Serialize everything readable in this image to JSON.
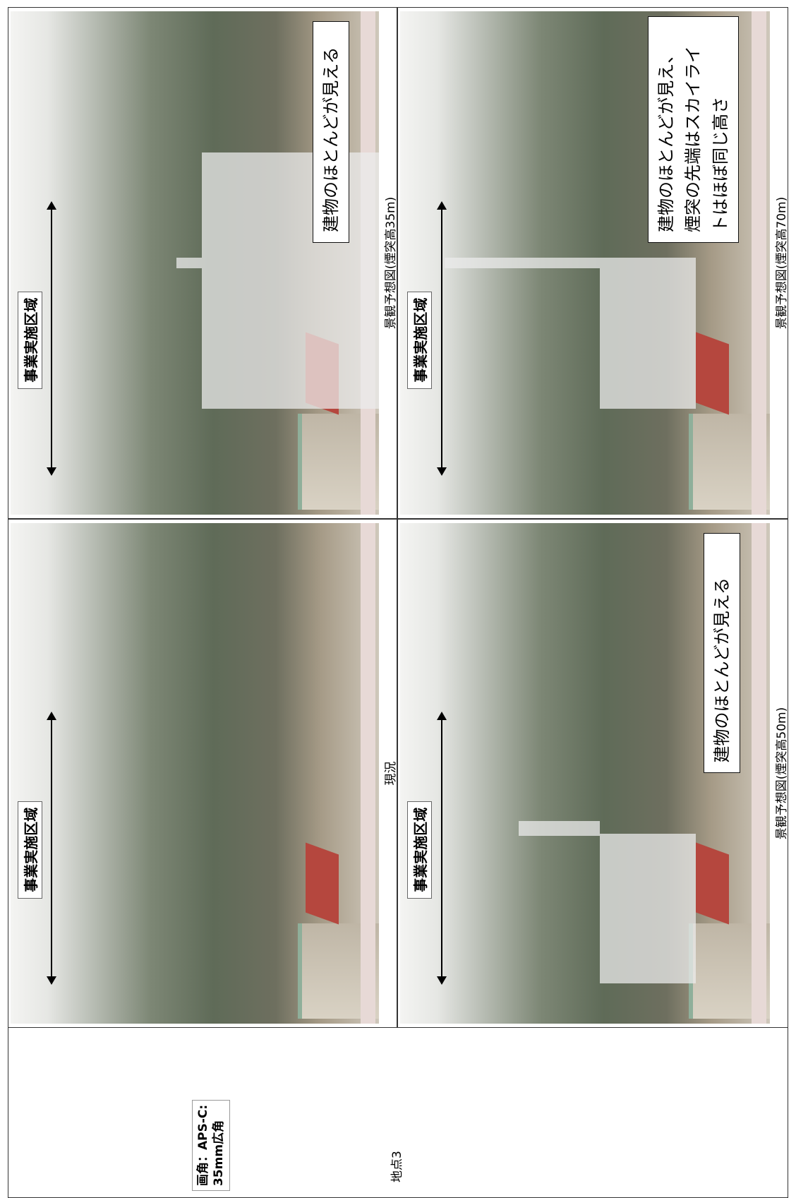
{
  "point": "地点3",
  "angle": {
    "lines": [
      "画角：APS-C:",
      "35mm広角"
    ]
  },
  "cells": [
    {
      "caption": "現況",
      "area_label": "事業実施区域",
      "note": null
    },
    {
      "caption": "景観予想図(煙突高35m)",
      "area_label": "事業実施区域",
      "note": [
        "建物のほとんどが見える"
      ]
    },
    {
      "caption": "景観予想図(煙突高50m)",
      "area_label": "事業実施区域",
      "note": [
        "建物のほとんどが見える"
      ]
    },
    {
      "caption": "景観予想図(煙突高70m)",
      "area_label": "事業実施区域",
      "note": [
        "建物のほとんどが見え、",
        "煙突の先端はスカイライ",
        "トはほぼ同じ高さ"
      ]
    }
  ]
}
